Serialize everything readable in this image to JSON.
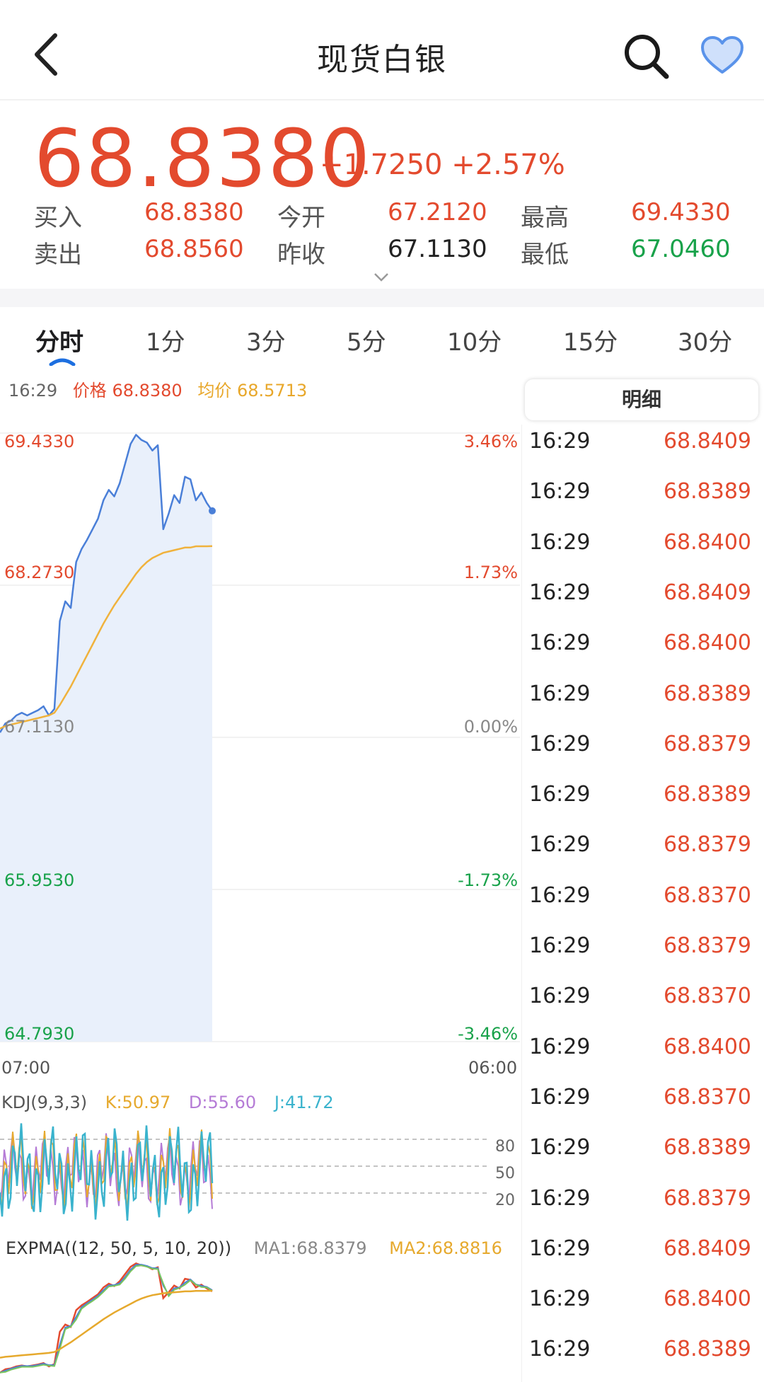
{
  "header": {
    "title": "现货白银",
    "back_icon": "chevron-left-icon",
    "search_icon": "search-icon",
    "favorite_icon": "heart-icon"
  },
  "quote": {
    "price": "68.8380",
    "change": "+1.7250",
    "change_pct": "+2.57%",
    "buy_label": "买入",
    "buy_value": "68.8380",
    "sell_label": "卖出",
    "sell_value": "68.8560",
    "open_label": "今开",
    "open_value": "67.2120",
    "prev_close_label": "昨收",
    "prev_close_value": "67.1130",
    "high_label": "最高",
    "high_value": "69.4330",
    "low_label": "最低",
    "low_value": "67.0460"
  },
  "colors": {
    "up": "#e34a2e",
    "down": "#18a24a",
    "price_line": "#4a7fd8",
    "avg_line": "#f0b23c",
    "fill": "#e9f0fb",
    "k": "#e6a92d",
    "d": "#b57bd6",
    "j": "#3ab3cd"
  },
  "tabs": [
    {
      "label": "分时",
      "active": true
    },
    {
      "label": "1分",
      "active": false
    },
    {
      "label": "3分",
      "active": false
    },
    {
      "label": "5分",
      "active": false
    },
    {
      "label": "10分",
      "active": false
    },
    {
      "label": "15分",
      "active": false
    },
    {
      "label": "30分",
      "active": false
    }
  ],
  "chart_legend": {
    "time": "16:29",
    "price_label": "价格",
    "price_value": "68.8380",
    "avg_label": "均价",
    "avg_value": "68.5713"
  },
  "chart_data": {
    "type": "line",
    "y_left_labels": [
      "69.4330",
      "68.2730",
      "67.1130",
      "65.9530",
      "64.7930"
    ],
    "y_right_labels": [
      "3.46%",
      "1.73%",
      "0.00%",
      "-1.73%",
      "-3.46%"
    ],
    "x_labels": [
      "07:00",
      "06:00"
    ],
    "ylim": [
      64.793,
      69.433
    ],
    "series": [
      {
        "name": "价格",
        "values": [
          67.15,
          67.22,
          67.24,
          67.28,
          67.3,
          67.28,
          67.3,
          67.32,
          67.35,
          67.28,
          67.33,
          68.0,
          68.15,
          68.1,
          68.45,
          68.55,
          68.62,
          68.7,
          68.78,
          68.92,
          69.0,
          68.95,
          69.05,
          69.2,
          69.35,
          69.42,
          69.38,
          69.36,
          69.3,
          69.34,
          68.7,
          68.82,
          68.96,
          68.9,
          69.1,
          69.08,
          68.92,
          68.98,
          68.9,
          68.84
        ]
      },
      {
        "name": "均价",
        "values": [
          67.18,
          67.2,
          67.21,
          67.22,
          67.23,
          67.24,
          67.25,
          67.26,
          67.27,
          67.28,
          67.3,
          67.36,
          67.43,
          67.5,
          67.58,
          67.66,
          67.74,
          67.82,
          67.9,
          67.98,
          68.05,
          68.12,
          68.18,
          68.24,
          68.3,
          68.36,
          68.41,
          68.45,
          68.48,
          68.5,
          68.52,
          68.53,
          68.54,
          68.55,
          68.56,
          68.56,
          68.57,
          68.57,
          68.57,
          68.5713
        ]
      }
    ]
  },
  "kdj": {
    "label": "KDJ(9,3,3)",
    "k": "K:50.97",
    "d": "D:55.60",
    "j": "J:41.72",
    "levels": [
      "80",
      "50",
      "20"
    ]
  },
  "expma": {
    "label": "EXPMA((12, 50, 5, 10, 20))",
    "ma1": "MA1:68.8379",
    "ma2": "MA2:68.8816"
  },
  "detail": {
    "title": "明细",
    "rows": [
      {
        "time": "16:29",
        "price": "68.8409"
      },
      {
        "time": "16:29",
        "price": "68.8389"
      },
      {
        "time": "16:29",
        "price": "68.8400"
      },
      {
        "time": "16:29",
        "price": "68.8409"
      },
      {
        "time": "16:29",
        "price": "68.8400"
      },
      {
        "time": "16:29",
        "price": "68.8389"
      },
      {
        "time": "16:29",
        "price": "68.8379"
      },
      {
        "time": "16:29",
        "price": "68.8389"
      },
      {
        "time": "16:29",
        "price": "68.8379"
      },
      {
        "time": "16:29",
        "price": "68.8370"
      },
      {
        "time": "16:29",
        "price": "68.8379"
      },
      {
        "time": "16:29",
        "price": "68.8370"
      },
      {
        "time": "16:29",
        "price": "68.8400"
      },
      {
        "time": "16:29",
        "price": "68.8370"
      },
      {
        "time": "16:29",
        "price": "68.8389"
      },
      {
        "time": "16:29",
        "price": "68.8379"
      },
      {
        "time": "16:29",
        "price": "68.8409"
      },
      {
        "time": "16:29",
        "price": "68.8400"
      },
      {
        "time": "16:29",
        "price": "68.8389"
      }
    ]
  }
}
